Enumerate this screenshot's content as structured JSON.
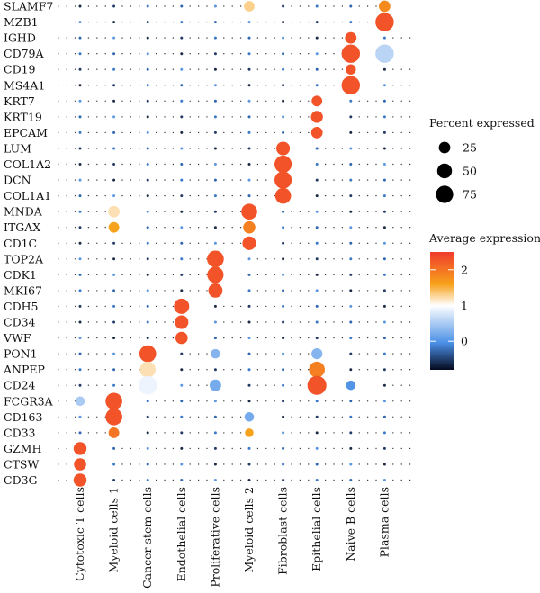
{
  "chart_data": {
    "type": "dotplot",
    "genes": [
      "SLAMF7",
      "MZB1",
      "IGHD",
      "CD79A",
      "CD19",
      "MS4A1",
      "KRT7",
      "KRT19",
      "EPCAM",
      "LUM",
      "COL1A2",
      "DCN",
      "COL1A1",
      "MNDA",
      "ITGAX",
      "CD1C",
      "TOP2A",
      "CDK1",
      "MKI67",
      "CDH5",
      "CD34",
      "VWF",
      "PON1",
      "ANPEP",
      "CD24",
      "FCGR3A",
      "CD163",
      "CD33",
      "GZMH",
      "CTSW",
      "CD3G"
    ],
    "cell_types": [
      "Cytotoxic T cells",
      "Myeloid cells 1",
      "Cancer stem cells",
      "Endothelial cells",
      "Proliferative cells",
      "Myeloid cells 2",
      "Fibroblast cells",
      "Epithelial cells",
      "Naive B cells",
      "Plasma cells"
    ],
    "points": [
      {
        "gene": "SLAMF7",
        "cell": "Myeloid cells 2",
        "pct": 20,
        "avg": 1.3
      },
      {
        "gene": "SLAMF7",
        "cell": "Plasma cells",
        "pct": 25,
        "avg": 1.8
      },
      {
        "gene": "MZB1",
        "cell": "Plasma cells",
        "pct": 88,
        "avg": 2.3
      },
      {
        "gene": "IGHD",
        "cell": "Naive B cells",
        "pct": 25,
        "avg": 2.3
      },
      {
        "gene": "CD79A",
        "cell": "Naive B cells",
        "pct": 88,
        "avg": 2.3
      },
      {
        "gene": "CD79A",
        "cell": "Plasma cells",
        "pct": 88,
        "avg": 0.6
      },
      {
        "gene": "CD19",
        "cell": "Naive B cells",
        "pct": 18,
        "avg": 2.3
      },
      {
        "gene": "MS4A1",
        "cell": "Naive B cells",
        "pct": 88,
        "avg": 2.3
      },
      {
        "gene": "KRT7",
        "cell": "Epithelial cells",
        "pct": 20,
        "avg": 2.3
      },
      {
        "gene": "KRT19",
        "cell": "Epithelial cells",
        "pct": 28,
        "avg": 2.3
      },
      {
        "gene": "EPCAM",
        "cell": "Epithelial cells",
        "pct": 25,
        "avg": 2.3
      },
      {
        "gene": "LUM",
        "cell": "Fibroblast cells",
        "pct": 40,
        "avg": 2.3
      },
      {
        "gene": "COL1A2",
        "cell": "Fibroblast cells",
        "pct": 75,
        "avg": 2.3
      },
      {
        "gene": "DCN",
        "cell": "Fibroblast cells",
        "pct": 75,
        "avg": 2.3
      },
      {
        "gene": "COL1A1",
        "cell": "Fibroblast cells",
        "pct": 60,
        "avg": 2.3
      },
      {
        "gene": "MNDA",
        "cell": "Myeloid cells 1",
        "pct": 25,
        "avg": 1.2
      },
      {
        "gene": "MNDA",
        "cell": "Myeloid cells 2",
        "pct": 60,
        "avg": 2.3
      },
      {
        "gene": "ITGAX",
        "cell": "Myeloid cells 1",
        "pct": 20,
        "avg": 1.6
      },
      {
        "gene": "ITGAX",
        "cell": "Myeloid cells 2",
        "pct": 30,
        "avg": 1.9
      },
      {
        "gene": "CD1C",
        "cell": "Myeloid cells 2",
        "pct": 40,
        "avg": 2.3
      },
      {
        "gene": "TOP2A",
        "cell": "Proliferative cells",
        "pct": 70,
        "avg": 2.3
      },
      {
        "gene": "CDK1",
        "cell": "Proliferative cells",
        "pct": 65,
        "avg": 2.3
      },
      {
        "gene": "MKI67",
        "cell": "Proliferative cells",
        "pct": 45,
        "avg": 2.3
      },
      {
        "gene": "CDH5",
        "cell": "Endothelial cells",
        "pct": 55,
        "avg": 2.3
      },
      {
        "gene": "CD34",
        "cell": "Endothelial cells",
        "pct": 40,
        "avg": 2.3
      },
      {
        "gene": "VWF",
        "cell": "Endothelial cells",
        "pct": 30,
        "avg": 2.3
      },
      {
        "gene": "PON1",
        "cell": "Cancer stem cells",
        "pct": 70,
        "avg": 2.3
      },
      {
        "gene": "PON1",
        "cell": "Proliferative cells",
        "pct": 14,
        "avg": 0.3
      },
      {
        "gene": "PON1",
        "cell": "Epithelial cells",
        "pct": 22,
        "avg": 0.3
      },
      {
        "gene": "ANPEP",
        "cell": "Cancer stem cells",
        "pct": 60,
        "avg": 1.2
      },
      {
        "gene": "ANPEP",
        "cell": "Epithelial cells",
        "pct": 60,
        "avg": 1.9
      },
      {
        "gene": "CD24",
        "cell": "Cancer stem cells",
        "pct": 90,
        "avg": 0.9
      },
      {
        "gene": "CD24",
        "cell": "Proliferative cells",
        "pct": 25,
        "avg": 0.2
      },
      {
        "gene": "CD24",
        "cell": "Epithelial cells",
        "pct": 95,
        "avg": 2.3
      },
      {
        "gene": "CD24",
        "cell": "Naive B cells",
        "pct": 14,
        "avg": 0.0
      },
      {
        "gene": "FCGR3A",
        "cell": "Cytotoxic T cells",
        "pct": 14,
        "avg": 0.5
      },
      {
        "gene": "FCGR3A",
        "cell": "Myeloid cells 1",
        "pct": 70,
        "avg": 2.3
      },
      {
        "gene": "CD163",
        "cell": "Myeloid cells 1",
        "pct": 70,
        "avg": 2.3
      },
      {
        "gene": "CD163",
        "cell": "Myeloid cells 2",
        "pct": 14,
        "avg": 0.2
      },
      {
        "gene": "CD33",
        "cell": "Myeloid cells 1",
        "pct": 20,
        "avg": 2.0
      },
      {
        "gene": "CD33",
        "cell": "Myeloid cells 2",
        "pct": 10,
        "avg": 1.6
      },
      {
        "gene": "GZMH",
        "cell": "Cytotoxic T cells",
        "pct": 35,
        "avg": 2.3
      },
      {
        "gene": "CTSW",
        "cell": "Cytotoxic T cells",
        "pct": 30,
        "avg": 2.3
      },
      {
        "gene": "CD3G",
        "cell": "Cytotoxic T cells",
        "pct": 35,
        "avg": 2.3
      }
    ],
    "size_legend": {
      "title": "Percent expressed",
      "breaks": [
        25,
        50,
        75
      ]
    },
    "color_legend": {
      "title": "Average expression",
      "min": -0.8,
      "max": 2.5,
      "ticks": [
        2,
        1,
        0
      ]
    },
    "colors": {
      "high": "#f03c2d",
      "mid_high": "#f7a21b",
      "mid": "#ffffff",
      "mid_low": "#4a8fe6",
      "low": "#050a1e",
      "dot_outline": "#000000"
    }
  }
}
